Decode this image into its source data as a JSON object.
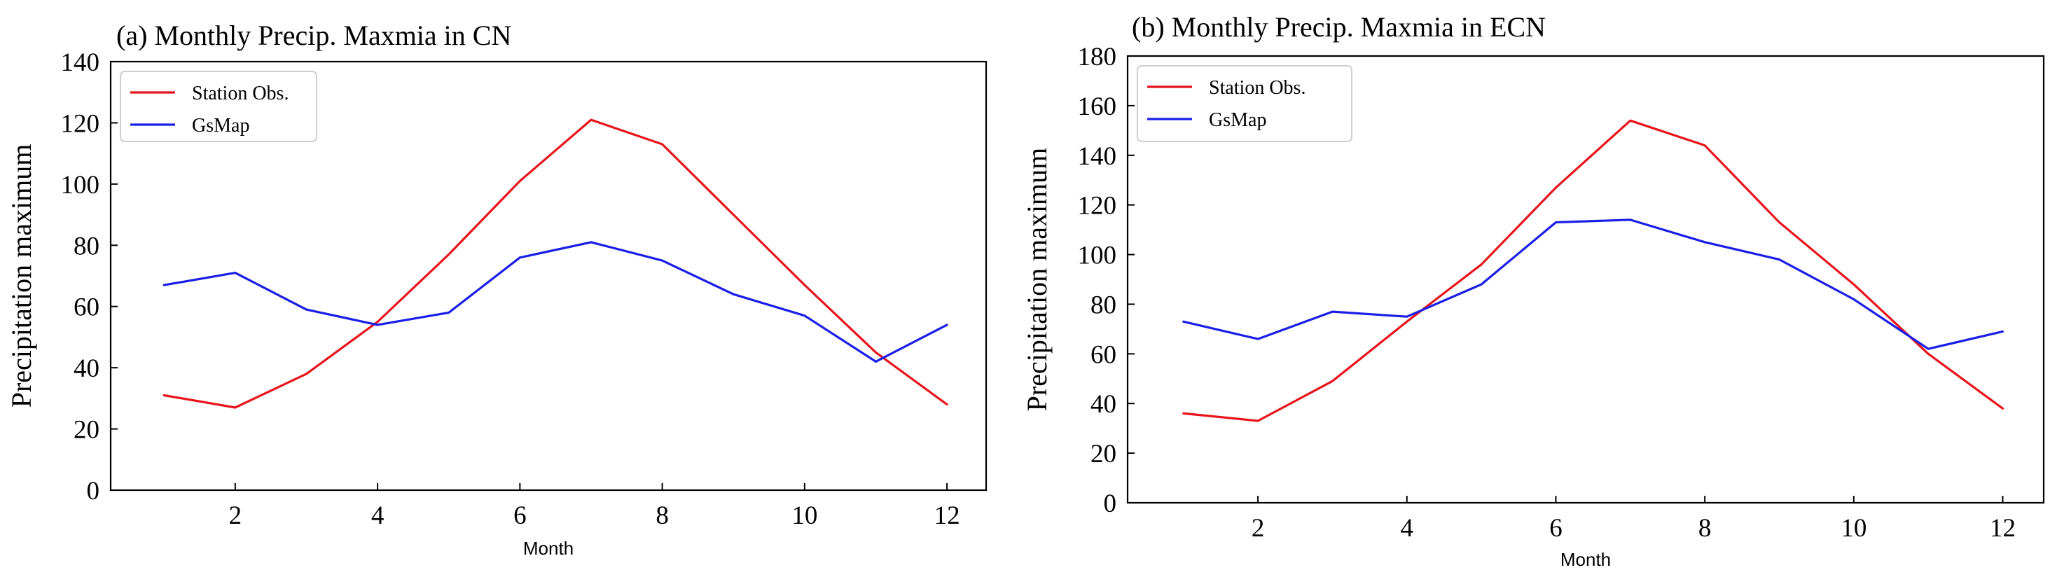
{
  "chart_data": [
    {
      "type": "line",
      "title": "(a) Monthly Precip. Maxmia in CN",
      "xlabel": "Month",
      "ylabel": "Precipitation maximum",
      "xlim": [
        0.25,
        12.55
      ],
      "ylim": [
        0,
        140
      ],
      "xticks": [
        2,
        4,
        6,
        8,
        10,
        12
      ],
      "yticks": [
        0,
        20,
        40,
        60,
        80,
        100,
        120,
        140
      ],
      "legend_position": "top-left",
      "x": [
        1,
        2,
        3,
        4,
        5,
        6,
        7,
        8,
        9,
        10,
        11,
        12
      ],
      "series": [
        {
          "name": "Station Obs.",
          "color": "#e8141c",
          "values": [
            31,
            27,
            38,
            55,
            77,
            101,
            121,
            113,
            90,
            67,
            45,
            28
          ]
        },
        {
          "name": "GsMap",
          "color": "#1b1ee8",
          "values": [
            67,
            71,
            59,
            54,
            58,
            76,
            81,
            75,
            64,
            57,
            42,
            54
          ]
        }
      ]
    },
    {
      "type": "line",
      "title": "(b) Monthly Precip. Maxmia in ECN",
      "xlabel": "Month",
      "ylabel": "Precipitation maximum",
      "xlim": [
        0.25,
        12.55
      ],
      "ylim": [
        0,
        180
      ],
      "xticks": [
        2,
        4,
        6,
        8,
        10,
        12
      ],
      "yticks": [
        0,
        20,
        40,
        60,
        80,
        100,
        120,
        140,
        160,
        180
      ],
      "legend_position": "top-left",
      "x": [
        1,
        2,
        3,
        4,
        5,
        6,
        7,
        8,
        9,
        10,
        11,
        12
      ],
      "series": [
        {
          "name": "Station Obs.",
          "color": "#e8141c",
          "values": [
            36,
            33,
            49,
            73,
            96,
            127,
            154,
            144,
            113,
            88,
            60,
            38
          ]
        },
        {
          "name": "GsMap",
          "color": "#1b1ee8",
          "values": [
            73,
            66,
            77,
            75,
            88,
            113,
            114,
            105,
            98,
            82,
            62,
            69
          ]
        }
      ]
    }
  ]
}
